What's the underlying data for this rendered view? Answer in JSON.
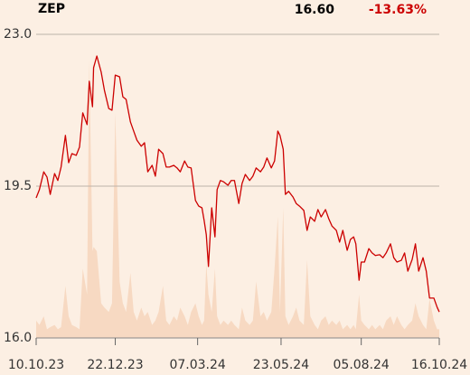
{
  "chart_data": {
    "type": "line",
    "title": "ZEP",
    "last_price": "16.60",
    "change": "-13.63%",
    "x": [
      "2023-10-10",
      "2023-10-13",
      "2023-10-17",
      "2023-10-20",
      "2023-10-23",
      "2023-10-27",
      "2023-10-30",
      "2023-11-02",
      "2023-11-06",
      "2023-11-09",
      "2023-11-12",
      "2023-11-16",
      "2023-11-19",
      "2023-11-22",
      "2023-11-26",
      "2023-11-28",
      "2023-12-01",
      "2023-12-02",
      "2023-12-05",
      "2023-12-09",
      "2023-12-12",
      "2023-12-16",
      "2023-12-19",
      "2023-12-22",
      "2023-12-26",
      "2023-12-29",
      "2024-01-01",
      "2024-01-05",
      "2024-01-08",
      "2024-01-11",
      "2024-01-15",
      "2024-01-18",
      "2024-01-21",
      "2024-01-25",
      "2024-01-28",
      "2024-01-31",
      "2024-02-04",
      "2024-02-07",
      "2024-02-10",
      "2024-02-14",
      "2024-02-17",
      "2024-02-20",
      "2024-02-24",
      "2024-02-27",
      "2024-03-01",
      "2024-03-05",
      "2024-03-08",
      "2024-03-11",
      "2024-03-13",
      "2024-03-15",
      "2024-03-17",
      "2024-03-20",
      "2024-03-23",
      "2024-03-25",
      "2024-03-28",
      "2024-03-31",
      "2024-04-04",
      "2024-04-07",
      "2024-04-10",
      "2024-04-14",
      "2024-04-17",
      "2024-04-20",
      "2024-04-24",
      "2024-04-27",
      "2024-04-30",
      "2024-05-04",
      "2024-05-07",
      "2024-05-10",
      "2024-05-14",
      "2024-05-17",
      "2024-05-20",
      "2024-05-22",
      "2024-05-25",
      "2024-05-27",
      "2024-05-30",
      "2024-06-03",
      "2024-06-06",
      "2024-06-09",
      "2024-06-13",
      "2024-06-16",
      "2024-06-19",
      "2024-06-23",
      "2024-06-26",
      "2024-06-29",
      "2024-07-03",
      "2024-07-06",
      "2024-07-09",
      "2024-07-13",
      "2024-07-16",
      "2024-07-19",
      "2024-07-23",
      "2024-07-26",
      "2024-07-29",
      "2024-07-31",
      "2024-08-03",
      "2024-08-05",
      "2024-08-08",
      "2024-08-12",
      "2024-08-15",
      "2024-08-18",
      "2024-08-22",
      "2024-08-25",
      "2024-08-28",
      "2024-09-01",
      "2024-09-04",
      "2024-09-07",
      "2024-09-11",
      "2024-09-14",
      "2024-09-17",
      "2024-09-21",
      "2024-09-24",
      "2024-09-27",
      "2024-10-01",
      "2024-10-04",
      "2024-10-07",
      "2024-10-11",
      "2024-10-14",
      "2024-10-16"
    ],
    "series": [
      {
        "color": "#cc0000",
        "values": [
          19.23,
          19.42,
          19.83,
          19.71,
          19.31,
          19.79,
          19.63,
          19.94,
          20.67,
          20.04,
          20.25,
          20.21,
          20.4,
          21.19,
          20.92,
          21.92,
          21.33,
          22.23,
          22.5,
          22.13,
          21.71,
          21.29,
          21.25,
          22.06,
          22.02,
          21.56,
          21.5,
          20.98,
          20.77,
          20.56,
          20.42,
          20.5,
          19.83,
          19.98,
          19.73,
          20.35,
          20.25,
          19.94,
          19.94,
          19.98,
          19.92,
          19.83,
          20.08,
          19.94,
          19.92,
          19.17,
          19.04,
          19.0,
          18.71,
          18.38,
          17.65,
          19.0,
          18.33,
          19.42,
          19.63,
          19.6,
          19.52,
          19.63,
          19.63,
          19.1,
          19.56,
          19.77,
          19.63,
          19.73,
          19.92,
          19.83,
          19.94,
          20.15,
          19.92,
          20.08,
          20.77,
          20.67,
          20.35,
          19.31,
          19.38,
          19.25,
          19.1,
          19.04,
          18.94,
          18.48,
          18.79,
          18.69,
          18.96,
          18.79,
          18.96,
          18.75,
          18.58,
          18.48,
          18.21,
          18.48,
          18.02,
          18.27,
          18.33,
          18.17,
          17.33,
          17.75,
          17.75,
          18.06,
          17.96,
          17.9,
          17.92,
          17.85,
          17.96,
          18.17,
          17.85,
          17.75,
          17.79,
          17.96,
          17.54,
          17.81,
          18.17,
          17.54,
          17.85,
          17.54,
          16.92,
          16.92,
          16.71,
          16.6
        ]
      }
    ],
    "volume": {
      "color": "#f7d9c2",
      "values": [
        16.4,
        16.3,
        16.5,
        16.2,
        16.25,
        16.3,
        16.2,
        16.25,
        17.2,
        16.5,
        16.3,
        16.25,
        16.2,
        17.6,
        17.0,
        22.4,
        18.0,
        18.1,
        18.0,
        16.8,
        16.7,
        16.6,
        16.8,
        21.2,
        17.3,
        16.8,
        16.6,
        17.5,
        16.6,
        16.4,
        16.7,
        16.5,
        16.6,
        16.3,
        16.4,
        16.6,
        17.2,
        16.4,
        16.3,
        16.5,
        16.4,
        16.7,
        16.5,
        16.3,
        16.6,
        16.8,
        16.5,
        16.3,
        16.4,
        17.7,
        17.0,
        16.6,
        17.6,
        16.5,
        16.3,
        16.4,
        16.3,
        16.4,
        16.3,
        16.2,
        16.7,
        16.4,
        16.3,
        16.4,
        17.3,
        16.5,
        16.6,
        16.4,
        16.6,
        17.6,
        18.8,
        16.6,
        19.0,
        16.5,
        16.3,
        16.5,
        16.7,
        16.4,
        16.3,
        17.8,
        16.5,
        16.3,
        16.2,
        16.4,
        16.5,
        16.3,
        16.4,
        16.3,
        16.4,
        16.2,
        16.3,
        16.2,
        16.3,
        16.2,
        17.0,
        16.4,
        16.3,
        16.2,
        16.3,
        16.2,
        16.3,
        16.2,
        16.4,
        16.5,
        16.3,
        16.5,
        16.3,
        16.2,
        16.3,
        16.4,
        16.8,
        16.5,
        16.3,
        16.2,
        16.9,
        16.4,
        16.2,
        16.2
      ]
    },
    "xlim": [
      "2023-10-10",
      "2024-10-16"
    ],
    "xticks": [
      {
        "value": "2023-10-10",
        "label": "10.10.23"
      },
      {
        "value": "2023-12-22",
        "label": "22.12.23"
      },
      {
        "value": "2024-03-07",
        "label": "07.03.24"
      },
      {
        "value": "2024-05-23",
        "label": "23.05.24"
      },
      {
        "value": "2024-08-05",
        "label": "05.08.24"
      },
      {
        "value": "2024-10-16",
        "label": "16.10.24"
      }
    ],
    "ylim": [
      16,
      23
    ],
    "yticks": [
      {
        "value": 16,
        "label": "16.0"
      },
      {
        "value": 19.5,
        "label": "19.5"
      },
      {
        "value": 23,
        "label": "23.0"
      }
    ],
    "grid": true
  }
}
